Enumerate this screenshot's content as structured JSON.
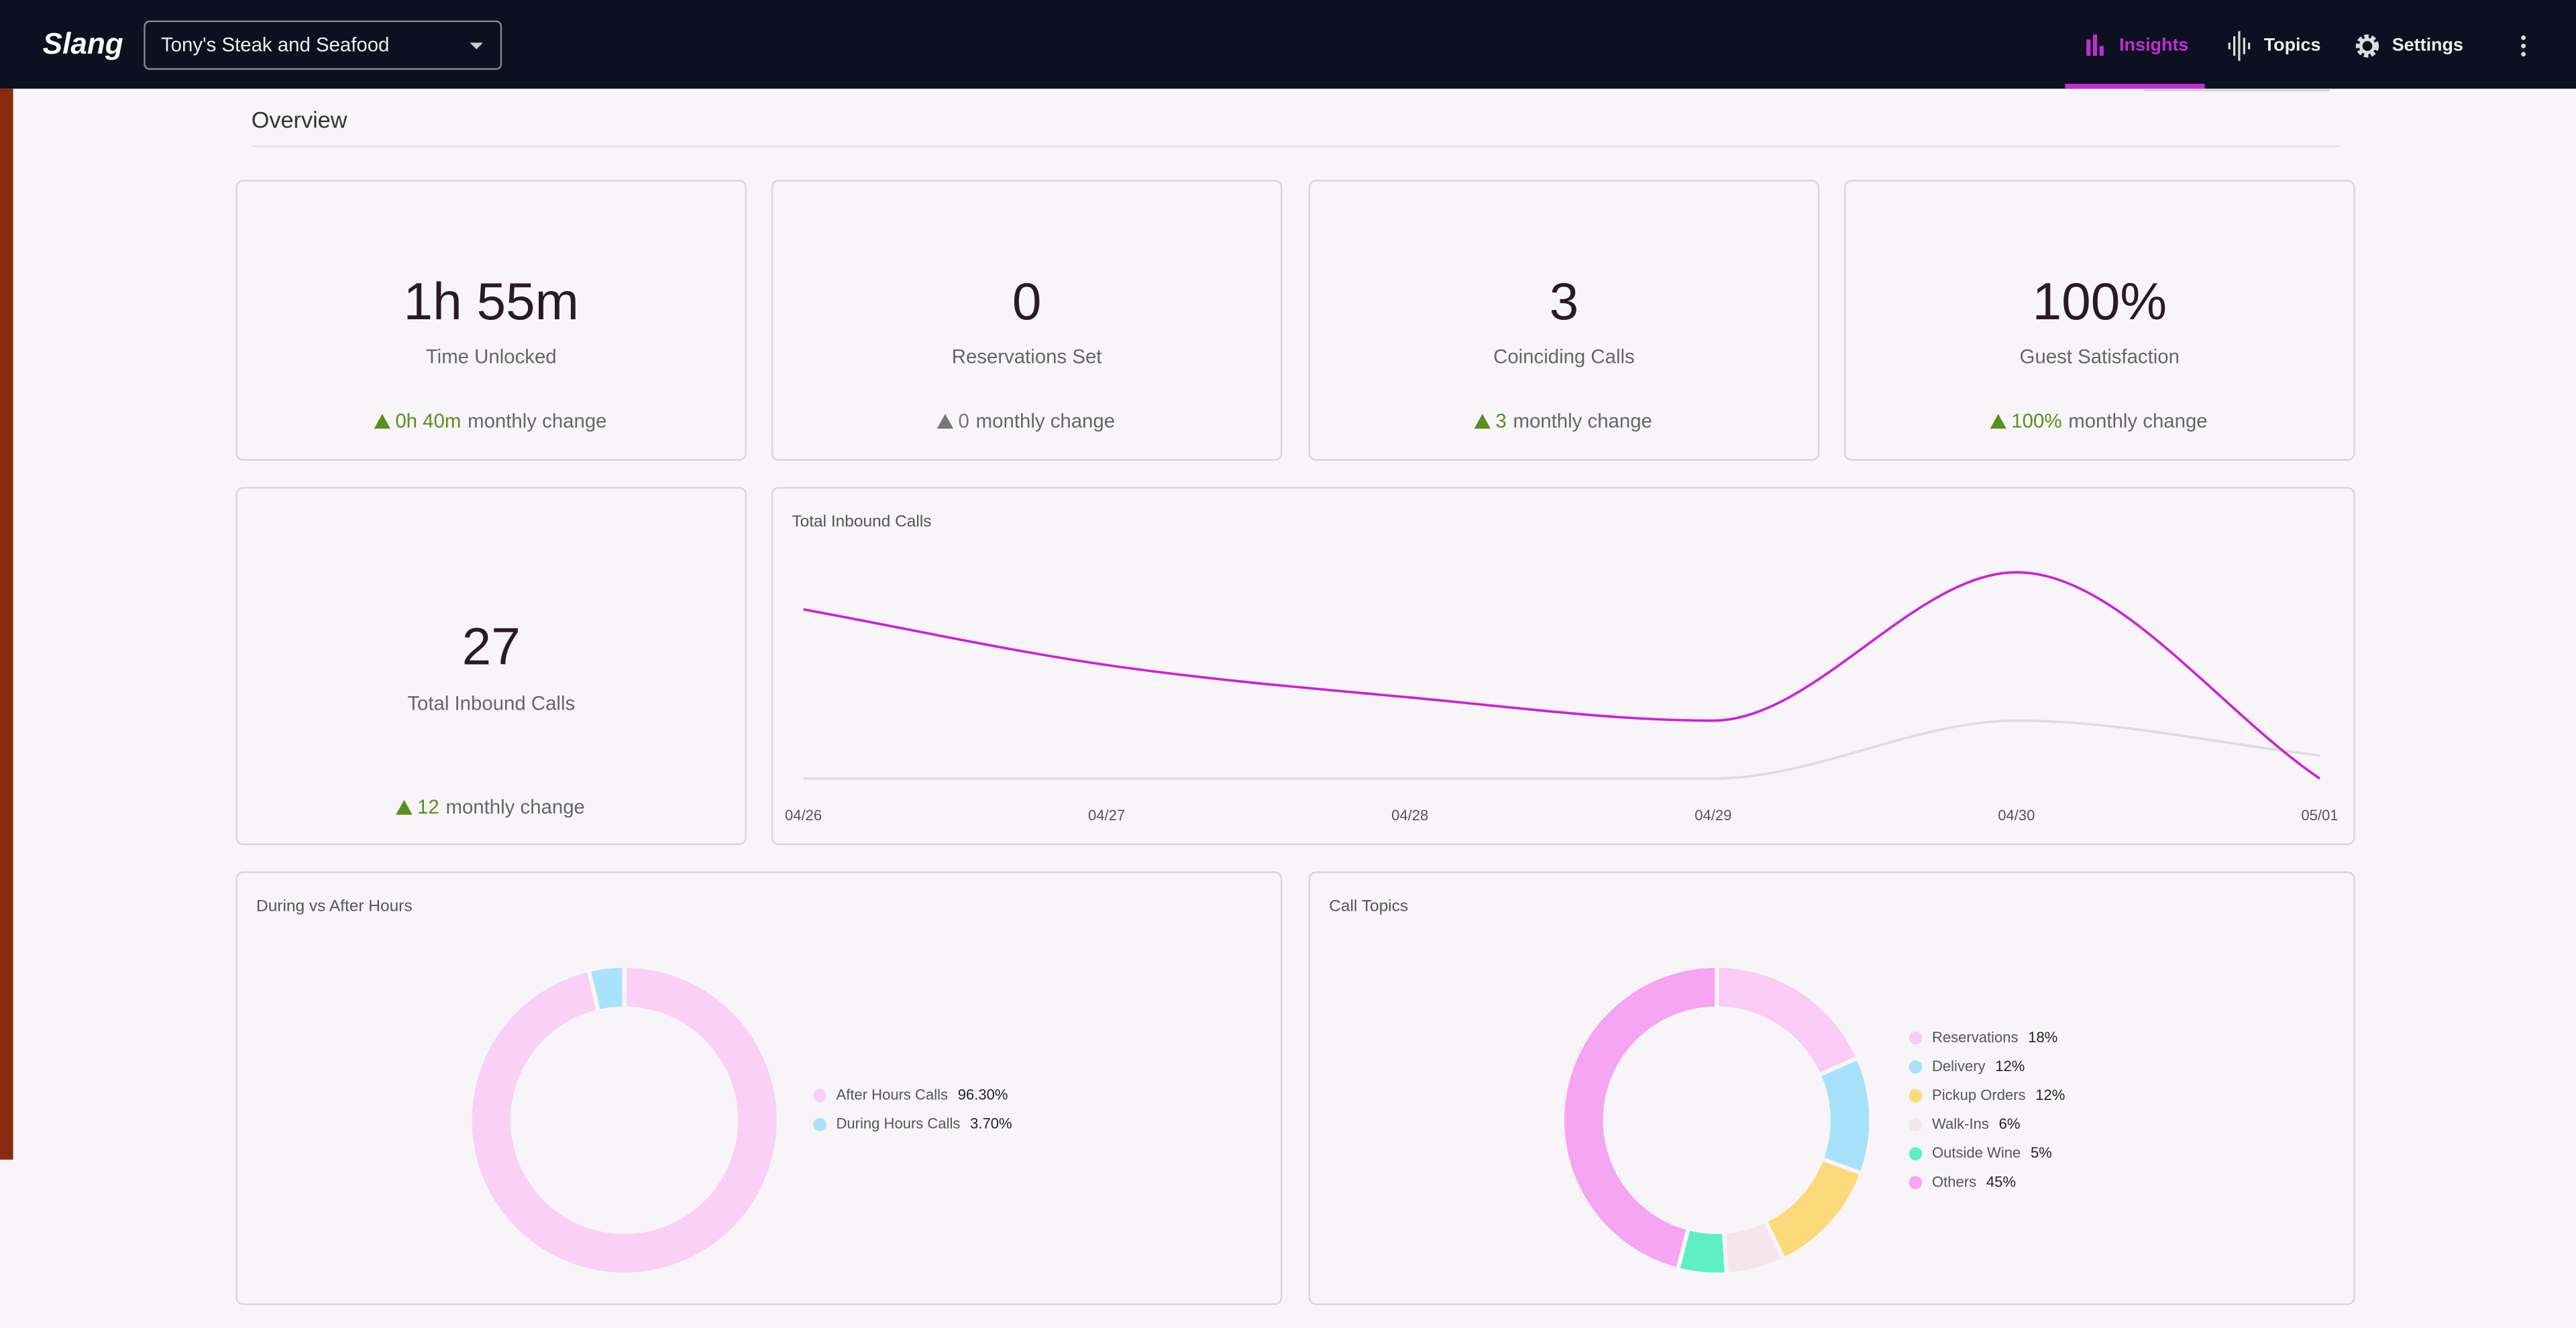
{
  "header": {
    "logo": "Slang",
    "location": "Tony's Steak and Seafood",
    "nav": [
      {
        "label": "Insights",
        "active": true
      },
      {
        "label": "Topics",
        "active": false
      },
      {
        "label": "Settings",
        "active": false
      }
    ]
  },
  "overview": "Overview",
  "stats": [
    {
      "value": "1h 55m",
      "label": "Time Unlocked",
      "change": "0h 40m",
      "change_label": "monthly change",
      "arrow_color": "#5a8f1f"
    },
    {
      "value": "0",
      "label": "Reservations Set",
      "change": "0",
      "change_label": "monthly change",
      "arrow_color": "#777777"
    },
    {
      "value": "3",
      "label": "Coinciding Calls",
      "change": "3",
      "change_label": "monthly change",
      "arrow_color": "#5a8f1f"
    },
    {
      "value": "100%",
      "label": "Guest Satisfaction",
      "change": "100%",
      "change_label": "monthly change",
      "arrow_color": "#5a8f1f"
    }
  ],
  "total_inbound": {
    "value": "27",
    "label": "Total Inbound Calls",
    "change": "12",
    "change_label": "monthly change",
    "arrow_color": "#5a8f1f"
  },
  "chart_data": [
    {
      "type": "line",
      "title": "Total Inbound Calls",
      "categories": [
        "04/26",
        "04/27",
        "04/28",
        "04/29",
        "04/30",
        "05/01"
      ],
      "ylim": [
        0,
        9
      ],
      "series": [
        {
          "color": "#dddddd",
          "values": [
            0,
            0,
            0,
            0,
            2.5,
            1
          ]
        },
        {
          "color": "#cc22d6",
          "values": [
            7.3,
            4.9,
            3.5,
            2.5,
            8.9,
            0
          ]
        }
      ]
    },
    {
      "type": "donut",
      "title": "During vs After Hours",
      "categories": [
        "After Hours Calls",
        "During Hours Calls"
      ],
      "values": [
        96.3,
        3.7
      ],
      "value_labels": [
        "96.30%",
        "3.70%"
      ],
      "colors": [
        "#fbd0f6",
        "#a9e3f9"
      ]
    },
    {
      "type": "donut",
      "title": "Call Topics",
      "categories": [
        "Reservations",
        "Delivery",
        "Pickup Orders",
        "Walk-Ins",
        "Outside Wine",
        "Others"
      ],
      "values": [
        18,
        12,
        12,
        6,
        5,
        45
      ],
      "value_labels": [
        "18%",
        "12%",
        "12%",
        "6%",
        "5%",
        "45%"
      ],
      "colors": [
        "#facbf5",
        "#a7e2fa",
        "#fcd97b",
        "#f2e6ea",
        "#5ef0c2",
        "#f5a5f1"
      ]
    }
  ]
}
